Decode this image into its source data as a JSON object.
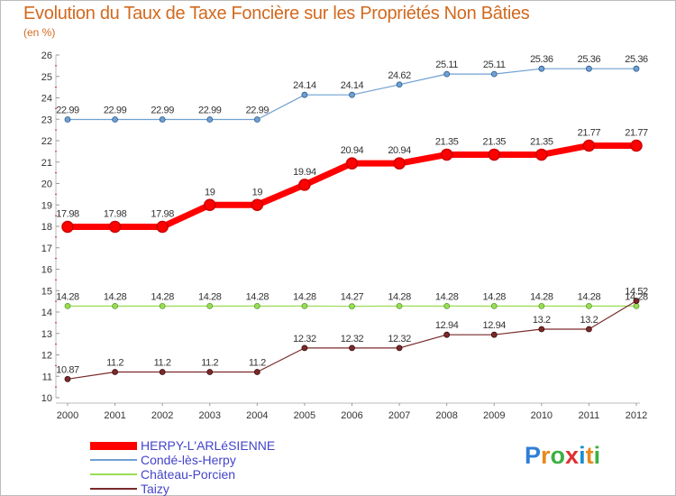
{
  "title": "Evolution du Taux de Taxe Foncière sur les Propriétés Non Bâties",
  "subtitle": "(en %)",
  "logo": {
    "letters": [
      "P",
      "r",
      "o",
      "x",
      "i",
      "t",
      "i"
    ],
    "colors": [
      "#2f7fd6",
      "#e8891c",
      "#3cb043",
      "#e03030",
      "#1a8fd0",
      "#e8891c",
      "#3cb043"
    ]
  },
  "chart_data": {
    "type": "line",
    "title": "Evolution du Taux de Taxe Foncière sur les Propriétés Non Bâties",
    "ylabel": "(en %)",
    "ylim": [
      10,
      26
    ],
    "yticks": [
      "10",
      "11",
      "12",
      "13",
      "14",
      "15",
      "16",
      "17",
      "18",
      "19",
      "20",
      "21",
      "22",
      "23",
      "24",
      "25",
      "26"
    ],
    "categories": [
      "2000",
      "2001",
      "2002",
      "2003",
      "2004",
      "2005",
      "2006",
      "2007",
      "2008",
      "2009",
      "2010",
      "2011",
      "2012"
    ],
    "grid": false,
    "legend_position": "bottom-left",
    "series": [
      {
        "name": "HERPY-L'ARLéSIENNE",
        "color": "#ff0000",
        "values": [
          17.98,
          17.98,
          17.98,
          19,
          19,
          19.94,
          20.94,
          20.94,
          21.35,
          21.35,
          21.35,
          21.77,
          21.77
        ],
        "labels": [
          "17.98",
          "17.98",
          "17.98",
          "19",
          "19",
          "19.94",
          "20.94",
          "20.94",
          "21.35",
          "21.35",
          "21.35",
          "21.77",
          "21.77"
        ]
      },
      {
        "name": "Condé-lès-Herpy",
        "color": "#6fa0d0",
        "values": [
          22.99,
          22.99,
          22.99,
          22.99,
          22.99,
          24.14,
          24.14,
          24.62,
          25.11,
          25.11,
          25.36,
          25.36,
          25.36
        ],
        "labels": [
          "22.99",
          "22.99",
          "22.99",
          "22.99",
          "22.99",
          "24.14",
          "24.14",
          "24.62",
          "25.11",
          "25.11",
          "25.36",
          "25.36",
          "25.36"
        ]
      },
      {
        "name": "Château-Porcien",
        "color": "#99dd55",
        "values": [
          14.28,
          14.28,
          14.28,
          14.28,
          14.28,
          14.28,
          14.27,
          14.28,
          14.28,
          14.28,
          14.28,
          14.28,
          14.28
        ],
        "labels": [
          "14.28",
          "14.28",
          "14.28",
          "14.28",
          "14.28",
          "14.28",
          "14.27",
          "14.28",
          "14.28",
          "14.28",
          "14.28",
          "14.28",
          "14.28"
        ]
      },
      {
        "name": "Taizy",
        "color": "#7a2a2a",
        "values": [
          10.87,
          11.2,
          11.2,
          11.2,
          11.2,
          12.32,
          12.32,
          12.32,
          12.94,
          12.94,
          13.2,
          13.2,
          14.52
        ],
        "labels": [
          "10.87",
          "11.2",
          "11.2",
          "11.2",
          "11.2",
          "12.32",
          "12.32",
          "12.32",
          "12.94",
          "12.94",
          "13.2",
          "13.2",
          "14.52"
        ]
      }
    ]
  }
}
